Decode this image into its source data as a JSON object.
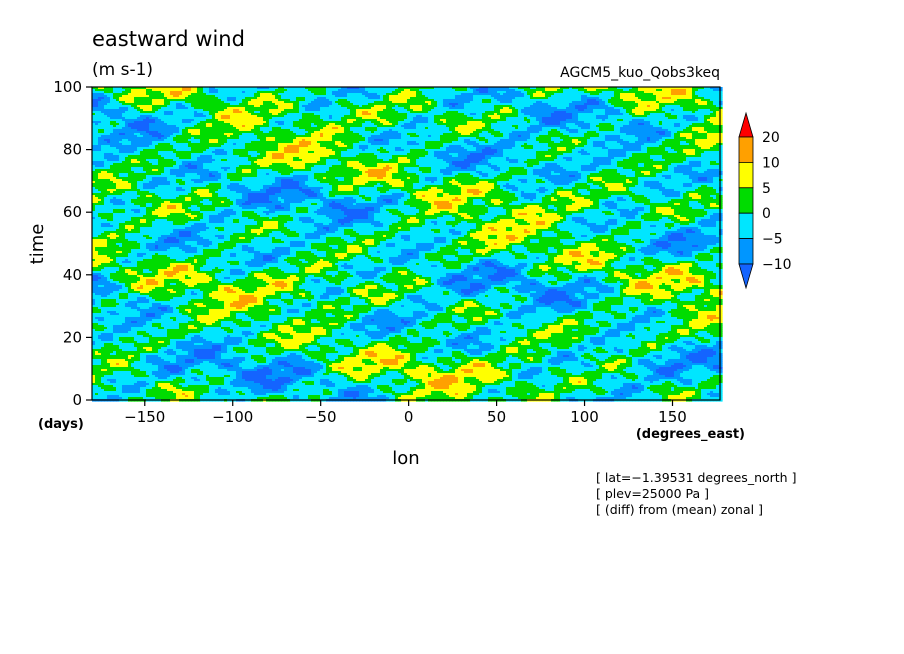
{
  "chart_data": {
    "type": "heatmap",
    "title": "eastward wind",
    "units": "(m s-1)",
    "experiment": "AGCM5_kuo_Qobs3keq",
    "xlabel": "lon",
    "xunits": "(degrees_east)",
    "ylabel": "time",
    "yunits": "(days)",
    "xlim": [
      -180,
      177
    ],
    "ylim": [
      0,
      100
    ],
    "xticks": [
      -150,
      -100,
      -50,
      0,
      50,
      100,
      150
    ],
    "yticks": [
      0,
      20,
      40,
      60,
      80,
      100
    ],
    "colorbar": {
      "levels": [
        -10,
        -5,
        0,
        5,
        10,
        20
      ],
      "colors": [
        "#1464ff",
        "#0096ff",
        "#00e6ff",
        "#00dc00",
        "#ffff00",
        "#ffa000",
        "#ff0000"
      ],
      "labels": [
        "20",
        "10",
        "5",
        "0",
        "−5",
        "−10"
      ]
    },
    "annotations": [
      "[ lat=−1.39531 degrees_north ]",
      "[ plev=25000 Pa ]",
      "[ (diff) from (mean) zonal ]"
    ],
    "xtick_labels": [
      "−150",
      "−100",
      "−50",
      "0",
      "50",
      "100",
      "150"
    ],
    "ytick_labels": [
      "0",
      "20",
      "40",
      "60",
      "80",
      "100"
    ]
  }
}
